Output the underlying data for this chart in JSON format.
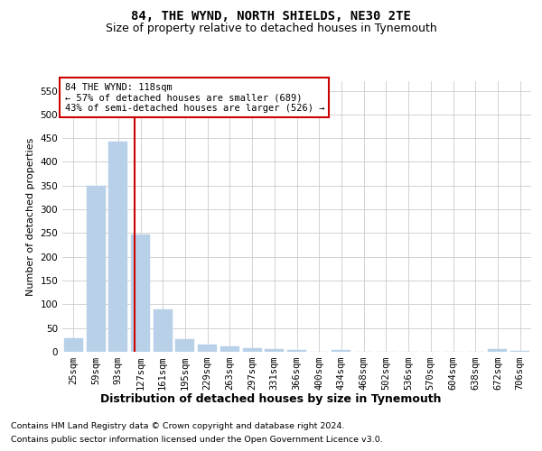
{
  "title": "84, THE WYND, NORTH SHIELDS, NE30 2TE",
  "subtitle": "Size of property relative to detached houses in Tynemouth",
  "xlabel": "Distribution of detached houses by size in Tynemouth",
  "ylabel": "Number of detached properties",
  "categories": [
    "25sqm",
    "59sqm",
    "93sqm",
    "127sqm",
    "161sqm",
    "195sqm",
    "229sqm",
    "263sqm",
    "297sqm",
    "331sqm",
    "366sqm",
    "400sqm",
    "434sqm",
    "468sqm",
    "502sqm",
    "536sqm",
    "570sqm",
    "604sqm",
    "638sqm",
    "672sqm",
    "706sqm"
  ],
  "values": [
    28,
    350,
    443,
    247,
    90,
    27,
    15,
    11,
    8,
    5,
    4,
    0,
    4,
    0,
    0,
    0,
    0,
    0,
    0,
    5,
    2
  ],
  "bar_color": "#b8d0e8",
  "bar_edge_color": "#b8d0e8",
  "vline_color": "#cc0000",
  "annotation_text": "84 THE WYND: 118sqm\n← 57% of detached houses are smaller (689)\n43% of semi-detached houses are larger (526) →",
  "annotation_box_color": "#ffffff",
  "annotation_box_edge_color": "#cc0000",
  "ylim": [
    0,
    570
  ],
  "yticks": [
    0,
    50,
    100,
    150,
    200,
    250,
    300,
    350,
    400,
    450,
    500,
    550
  ],
  "title_fontsize": 10,
  "subtitle_fontsize": 9,
  "xlabel_fontsize": 9,
  "ylabel_fontsize": 8,
  "tick_fontsize": 7.5,
  "annotation_fontsize": 7.5,
  "footer_line1": "Contains HM Land Registry data © Crown copyright and database right 2024.",
  "footer_line2": "Contains public sector information licensed under the Open Government Licence v3.0.",
  "background_color": "#ffffff",
  "grid_color": "#cccccc"
}
